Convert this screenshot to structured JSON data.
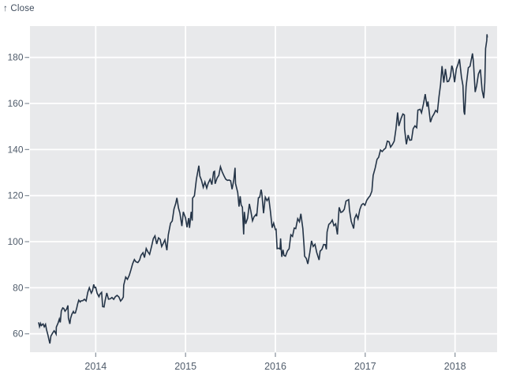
{
  "header": {
    "y_axis_title": "↑ Close"
  },
  "colors": {
    "line": "#243447",
    "plot_background": "#e8e9eb",
    "gridline": "#ffffff",
    "tick_mark": "#848e99",
    "tick_label": "#505c6b",
    "title_text": "#414e5f",
    "page_background": "#ffffff"
  },
  "chart_data": {
    "type": "line",
    "title": "Close",
    "y_axis_title": "↑ Close",
    "series_name": "Close",
    "legend": false,
    "grid": true,
    "x_ticks": [
      2014,
      2015,
      2016,
      2017,
      2018
    ],
    "y_ticks": [
      60,
      80,
      100,
      120,
      140,
      160,
      180
    ],
    "x_domain": [
      2013.27,
      2018.47
    ],
    "y_domain": [
      52.0,
      193.6
    ],
    "points": [
      [
        2013.364,
        64.96
      ],
      [
        2013.375,
        63.1
      ],
      [
        2013.386,
        64.5
      ],
      [
        2013.395,
        63.59
      ],
      [
        2013.414,
        64.29
      ],
      [
        2013.427,
        63.05
      ],
      [
        2013.441,
        64.1
      ],
      [
        2013.452,
        61.89
      ],
      [
        2013.468,
        59.55
      ],
      [
        2013.479,
        57.51
      ],
      [
        2013.49,
        55.79
      ],
      [
        2013.501,
        59.0
      ],
      [
        2013.52,
        60.34
      ],
      [
        2013.537,
        61.3
      ],
      [
        2013.548,
        60.71
      ],
      [
        2013.559,
        59.86
      ],
      [
        2013.562,
        62.93
      ],
      [
        2013.581,
        64.65
      ],
      [
        2013.595,
        66.43
      ],
      [
        2013.606,
        64.92
      ],
      [
        2013.617,
        69.94
      ],
      [
        2013.633,
        71.24
      ],
      [
        2013.644,
        71.02
      ],
      [
        2013.658,
        69.8
      ],
      [
        2013.677,
        70.75
      ],
      [
        2013.691,
        72.31
      ],
      [
        2013.696,
        66.82
      ],
      [
        2013.712,
        64.3
      ],
      [
        2013.721,
        66.77
      ],
      [
        2013.734,
        68.44
      ],
      [
        2013.751,
        69.71
      ],
      [
        2013.759,
        69.0
      ],
      [
        2013.773,
        69.06
      ],
      [
        2013.789,
        71.24
      ],
      [
        2013.797,
        72.7
      ],
      [
        2013.811,
        74.6
      ],
      [
        2013.827,
        73.81
      ],
      [
        2013.836,
        74.29
      ],
      [
        2013.855,
        74.37
      ],
      [
        2013.874,
        74.99
      ],
      [
        2013.893,
        74.26
      ],
      [
        2013.912,
        78.06
      ],
      [
        2013.929,
        80.0
      ],
      [
        2013.951,
        77.69
      ],
      [
        2013.964,
        78.68
      ],
      [
        2013.978,
        81.44
      ],
      [
        2013.989,
        80.01
      ],
      [
        2014.0,
        80.15
      ],
      [
        2014.016,
        77.62
      ],
      [
        2014.036,
        76.13
      ],
      [
        2014.047,
        77.24
      ],
      [
        2014.066,
        78.01
      ],
      [
        2014.077,
        71.8
      ],
      [
        2014.093,
        71.65
      ],
      [
        2014.104,
        74.23
      ],
      [
        2014.123,
        77.71
      ],
      [
        2014.142,
        75.04
      ],
      [
        2014.162,
        75.18
      ],
      [
        2014.181,
        75.77
      ],
      [
        2014.2,
        74.96
      ],
      [
        2014.219,
        76.12
      ],
      [
        2014.238,
        76.69
      ],
      [
        2014.258,
        75.97
      ],
      [
        2014.277,
        74.23
      ],
      [
        2014.293,
        74.99
      ],
      [
        2014.307,
        75.96
      ],
      [
        2014.312,
        81.11
      ],
      [
        2014.334,
        84.65
      ],
      [
        2014.353,
        83.65
      ],
      [
        2014.373,
        85.36
      ],
      [
        2014.392,
        87.73
      ],
      [
        2014.411,
        90.43
      ],
      [
        2014.43,
        92.22
      ],
      [
        2014.447,
        91.28
      ],
      [
        2014.469,
        90.91
      ],
      [
        2014.488,
        91.98
      ],
      [
        2014.504,
        94.03
      ],
      [
        2014.526,
        95.22
      ],
      [
        2014.543,
        93.09
      ],
      [
        2014.562,
        97.03
      ],
      [
        2014.581,
        95.6
      ],
      [
        2014.6,
        94.48
      ],
      [
        2014.622,
        97.98
      ],
      [
        2014.641,
        101.32
      ],
      [
        2014.66,
        102.5
      ],
      [
        2014.679,
        98.97
      ],
      [
        2014.699,
        101.66
      ],
      [
        2014.718,
        100.96
      ],
      [
        2014.734,
        97.87
      ],
      [
        2014.756,
        99.62
      ],
      [
        2014.77,
        100.8
      ],
      [
        2014.792,
        96.26
      ],
      [
        2014.808,
        102.99
      ],
      [
        2014.833,
        108.0
      ],
      [
        2014.852,
        109.01
      ],
      [
        2014.871,
        114.18
      ],
      [
        2014.89,
        116.47
      ],
      [
        2014.904,
        119.0
      ],
      [
        2014.921,
        114.63
      ],
      [
        2014.937,
        112.4
      ],
      [
        2014.959,
        106.75
      ],
      [
        2014.975,
        112.94
      ],
      [
        2015.0,
        110.38
      ],
      [
        2015.016,
        106.25
      ],
      [
        2015.036,
        110.22
      ],
      [
        2015.044,
        105.99
      ],
      [
        2015.063,
        112.98
      ],
      [
        2015.074,
        109.14
      ],
      [
        2015.079,
        118.9
      ],
      [
        2015.099,
        119.94
      ],
      [
        2015.121,
        127.08
      ],
      [
        2015.148,
        133.0
      ],
      [
        2015.159,
        128.46
      ],
      [
        2015.178,
        126.6
      ],
      [
        2015.197,
        123.59
      ],
      [
        2015.216,
        125.9
      ],
      [
        2015.236,
        123.25
      ],
      [
        2015.252,
        125.32
      ],
      [
        2015.274,
        127.1
      ],
      [
        2015.293,
        124.75
      ],
      [
        2015.312,
        130.28
      ],
      [
        2015.323,
        130.56
      ],
      [
        2015.329,
        125.15
      ],
      [
        2015.351,
        127.62
      ],
      [
        2015.37,
        128.77
      ],
      [
        2015.389,
        132.54
      ],
      [
        2015.408,
        130.28
      ],
      [
        2015.427,
        128.65
      ],
      [
        2015.447,
        127.17
      ],
      [
        2015.466,
        126.6
      ],
      [
        2015.485,
        126.75
      ],
      [
        2015.502,
        126.44
      ],
      [
        2015.518,
        122.77
      ],
      [
        2015.537,
        126.82
      ],
      [
        2015.551,
        132.07
      ],
      [
        2015.556,
        125.22
      ],
      [
        2015.581,
        121.3
      ],
      [
        2015.595,
        115.24
      ],
      [
        2015.608,
        119.72
      ],
      [
        2015.619,
        115.96
      ],
      [
        2015.633,
        115.01
      ],
      [
        2015.647,
        103.12
      ],
      [
        2015.655,
        112.92
      ],
      [
        2015.669,
        107.72
      ],
      [
        2015.691,
        110.15
      ],
      [
        2015.71,
        116.41
      ],
      [
        2015.726,
        113.4
      ],
      [
        2015.745,
        109.06
      ],
      [
        2015.762,
        110.78
      ],
      [
        2015.784,
        111.79
      ],
      [
        2015.792,
        111.04
      ],
      [
        2015.811,
        119.08
      ],
      [
        2015.825,
        119.27
      ],
      [
        2015.841,
        122.57
      ],
      [
        2015.849,
        121.06
      ],
      [
        2015.868,
        112.34
      ],
      [
        2015.888,
        119.3
      ],
      [
        2015.907,
        117.81
      ],
      [
        2015.926,
        119.03
      ],
      [
        2015.945,
        113.18
      ],
      [
        2015.964,
        106.03
      ],
      [
        2015.981,
        108.03
      ],
      [
        2016.0,
        105.26
      ],
      [
        2016.008,
        105.35
      ],
      [
        2016.019,
        96.96
      ],
      [
        2016.038,
        97.13
      ],
      [
        2016.052,
        96.79
      ],
      [
        2016.058,
        101.42
      ],
      [
        2016.071,
        93.42
      ],
      [
        2016.085,
        96.43
      ],
      [
        2016.096,
        94.02
      ],
      [
        2016.112,
        93.7
      ],
      [
        2016.134,
        96.04
      ],
      [
        2016.153,
        96.91
      ],
      [
        2016.172,
        103.01
      ],
      [
        2016.191,
        102.26
      ],
      [
        2016.21,
        105.92
      ],
      [
        2016.227,
        105.67
      ],
      [
        2016.249,
        109.99
      ],
      [
        2016.268,
        108.66
      ],
      [
        2016.284,
        112.1
      ],
      [
        2016.306,
        105.68
      ],
      [
        2016.32,
        97.82
      ],
      [
        2016.325,
        93.74
      ],
      [
        2016.344,
        92.72
      ],
      [
        2016.361,
        90.34
      ],
      [
        2016.383,
        95.22
      ],
      [
        2016.402,
        100.35
      ],
      [
        2016.421,
        97.92
      ],
      [
        2016.441,
        98.83
      ],
      [
        2016.46,
        95.33
      ],
      [
        2016.487,
        92.04
      ],
      [
        2016.498,
        95.89
      ],
      [
        2016.518,
        96.68
      ],
      [
        2016.537,
        98.78
      ],
      [
        2016.556,
        98.66
      ],
      [
        2016.567,
        96.67
      ],
      [
        2016.575,
        104.21
      ],
      [
        2016.595,
        107.48
      ],
      [
        2016.614,
        108.18
      ],
      [
        2016.633,
        109.36
      ],
      [
        2016.652,
        106.94
      ],
      [
        2016.671,
        107.73
      ],
      [
        2016.69,
        103.13
      ],
      [
        2016.704,
        111.77
      ],
      [
        2016.71,
        114.92
      ],
      [
        2016.729,
        112.71
      ],
      [
        2016.748,
        113.05
      ],
      [
        2016.767,
        114.06
      ],
      [
        2016.786,
        117.63
      ],
      [
        2016.816,
        118.25
      ],
      [
        2016.825,
        113.72
      ],
      [
        2016.844,
        108.84
      ],
      [
        2016.871,
        105.71
      ],
      [
        2016.882,
        110.06
      ],
      [
        2016.901,
        111.79
      ],
      [
        2016.92,
        109.9
      ],
      [
        2016.94,
        113.95
      ],
      [
        2016.959,
        115.97
      ],
      [
        2016.978,
        116.52
      ],
      [
        2016.997,
        115.82
      ],
      [
        2017.016,
        117.91
      ],
      [
        2017.036,
        119.04
      ],
      [
        2017.055,
        120.0
      ],
      [
        2017.074,
        121.95
      ],
      [
        2017.088,
        128.75
      ],
      [
        2017.112,
        132.12
      ],
      [
        2017.131,
        135.72
      ],
      [
        2017.15,
        136.66
      ],
      [
        2017.17,
        139.78
      ],
      [
        2017.189,
        139.14
      ],
      [
        2017.208,
        139.99
      ],
      [
        2017.227,
        140.64
      ],
      [
        2017.246,
        143.66
      ],
      [
        2017.266,
        143.34
      ],
      [
        2017.282,
        141.05
      ],
      [
        2017.304,
        142.27
      ],
      [
        2017.323,
        143.65
      ],
      [
        2017.342,
        148.96
      ],
      [
        2017.361,
        156.1
      ],
      [
        2017.375,
        150.25
      ],
      [
        2017.4,
        153.61
      ],
      [
        2017.419,
        155.45
      ],
      [
        2017.436,
        154.99
      ],
      [
        2017.438,
        148.98
      ],
      [
        2017.458,
        142.27
      ],
      [
        2017.477,
        146.28
      ],
      [
        2017.496,
        144.02
      ],
      [
        2017.515,
        144.18
      ],
      [
        2017.534,
        149.04
      ],
      [
        2017.553,
        150.27
      ],
      [
        2017.573,
        149.5
      ],
      [
        2017.586,
        157.14
      ],
      [
        2017.611,
        157.48
      ],
      [
        2017.627,
        155.98
      ],
      [
        2017.649,
        159.86
      ],
      [
        2017.668,
        164.05
      ],
      [
        2017.688,
        158.63
      ],
      [
        2017.699,
        160.86
      ],
      [
        2017.726,
        151.89
      ],
      [
        2017.745,
        154.12
      ],
      [
        2017.764,
        155.3
      ],
      [
        2017.784,
        156.99
      ],
      [
        2017.803,
        156.25
      ],
      [
        2017.822,
        163.05
      ],
      [
        2017.838,
        168.11
      ],
      [
        2017.855,
        176.24
      ],
      [
        2017.874,
        169.08
      ],
      [
        2017.893,
        174.96
      ],
      [
        2017.912,
        169.48
      ],
      [
        2017.929,
        169.64
      ],
      [
        2017.948,
        171.7
      ],
      [
        2017.964,
        176.42
      ],
      [
        2017.975,
        175.01
      ],
      [
        2017.995,
        169.23
      ],
      [
        2018.014,
        175.0
      ],
      [
        2018.033,
        177.09
      ],
      [
        2018.049,
        179.26
      ],
      [
        2018.071,
        171.51
      ],
      [
        2018.088,
        167.78
      ],
      [
        2018.099,
        156.49
      ],
      [
        2018.107,
        155.15
      ],
      [
        2018.123,
        167.37
      ],
      [
        2018.148,
        175.5
      ],
      [
        2018.167,
        176.21
      ],
      [
        2018.194,
        181.72
      ],
      [
        2018.205,
        178.02
      ],
      [
        2018.224,
        164.94
      ],
      [
        2018.241,
        167.78
      ],
      [
        2018.26,
        172.8
      ],
      [
        2018.282,
        174.73
      ],
      [
        2018.301,
        165.72
      ],
      [
        2018.32,
        162.32
      ],
      [
        2018.331,
        169.1
      ],
      [
        2018.34,
        183.83
      ],
      [
        2018.353,
        187.36
      ],
      [
        2018.356,
        190.04
      ],
      [
        2018.359,
        188.59
      ]
    ]
  }
}
